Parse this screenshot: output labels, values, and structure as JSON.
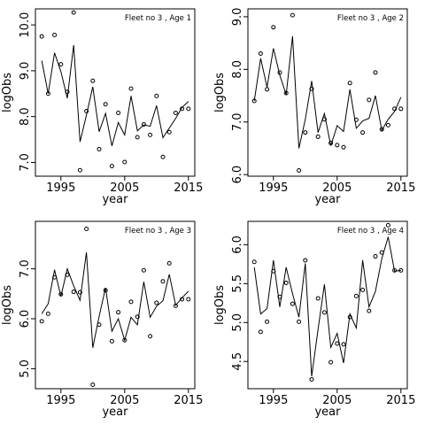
{
  "chart_data": [
    {
      "type": "scatter",
      "title": "Fleet no 3 , Age 1",
      "xlabel": "year",
      "ylabel": "logObs",
      "xlim": [
        1991,
        2016
      ],
      "ylim": [
        6.7,
        10.35
      ],
      "xticks": [
        1995,
        2005,
        2015
      ],
      "yticks": [
        7.0,
        8.0,
        9.0,
        10.0
      ],
      "ytick_labels": [
        "7.0",
        "8.0",
        "9.0",
        "10.0"
      ],
      "grid": false,
      "series": [
        {
          "kind": "points",
          "x": [
            1992,
            1993,
            1994,
            1995,
            1996,
            1997,
            1998,
            1999,
            2000,
            2001,
            2002,
            2003,
            2004,
            2005,
            2006,
            2007,
            2008,
            2009,
            2010,
            2011,
            2012,
            2013,
            2014,
            2015
          ],
          "y": [
            9.75,
            8.5,
            9.78,
            9.14,
            8.54,
            10.27,
            6.83,
            8.12,
            8.78,
            7.29,
            8.27,
            6.92,
            8.08,
            7.01,
            8.61,
            7.55,
            7.83,
            7.6,
            8.45,
            7.12,
            7.66,
            8.08,
            8.17,
            8.17
          ]
        },
        {
          "kind": "line",
          "x": [
            1992,
            1993,
            1994,
            1995,
            1996,
            1997,
            1998,
            1999,
            2000,
            2001,
            2002,
            2003,
            2004,
            2005,
            2006,
            2007,
            2008,
            2009,
            2010,
            2011,
            2012,
            2013,
            2014,
            2015
          ],
          "y": [
            9.22,
            8.5,
            9.39,
            8.98,
            8.4,
            9.56,
            7.45,
            8.03,
            8.65,
            7.67,
            8.07,
            7.36,
            7.87,
            7.6,
            8.45,
            7.69,
            7.82,
            7.79,
            8.24,
            7.54,
            7.75,
            7.96,
            8.2,
            8.33
          ]
        }
      ]
    },
    {
      "type": "scatter",
      "title": "Fleet no 3 , Age 2",
      "xlabel": "year",
      "ylabel": "logObs",
      "xlim": [
        1991,
        2016
      ],
      "ylim": [
        5.97,
        9.15
      ],
      "xticks": [
        1995,
        2005,
        2015
      ],
      "yticks": [
        6.0,
        7.0,
        8.0,
        9.0
      ],
      "ytick_labels": [
        "6.0",
        "7.0",
        "8.0",
        "9.0"
      ],
      "grid": false,
      "series": [
        {
          "kind": "points",
          "x": [
            1992,
            1993,
            1994,
            1995,
            1996,
            1997,
            1998,
            1999,
            2000,
            2001,
            2002,
            2003,
            2004,
            2005,
            2006,
            2007,
            2008,
            2009,
            2010,
            2011,
            2012,
            2013,
            2014,
            2015
          ],
          "y": [
            7.4,
            8.3,
            7.62,
            8.8,
            7.94,
            7.55,
            9.03,
            6.08,
            6.8,
            7.63,
            6.72,
            7.05,
            6.6,
            6.56,
            6.52,
            7.74,
            7.04,
            6.8,
            7.42,
            7.94,
            6.86,
            6.94,
            7.25,
            7.25
          ]
        },
        {
          "kind": "line",
          "x": [
            1992,
            1993,
            1994,
            1995,
            1996,
            1997,
            1998,
            1999,
            2000,
            2001,
            2002,
            2003,
            2004,
            2005,
            2006,
            2007,
            2008,
            2009,
            2010,
            2011,
            2012,
            2013,
            2014,
            2015
          ],
          "y": [
            7.4,
            8.21,
            7.66,
            8.4,
            7.89,
            7.52,
            8.63,
            6.5,
            7.05,
            7.78,
            6.8,
            7.16,
            6.55,
            6.93,
            6.82,
            7.62,
            6.88,
            7.02,
            7.07,
            7.5,
            6.84,
            7.05,
            7.2,
            7.47
          ]
        }
      ]
    },
    {
      "type": "scatter",
      "title": "Fleet no 3 , Age 3",
      "xlabel": "year",
      "ylabel": "logObs",
      "xlim": [
        1991,
        2016
      ],
      "ylim": [
        4.6,
        7.95
      ],
      "xticks": [
        1995,
        2005,
        2015
      ],
      "yticks": [
        5.0,
        6.0,
        7.0
      ],
      "ytick_labels": [
        "5.0",
        "6.0",
        "7.0"
      ],
      "grid": false,
      "series": [
        {
          "kind": "points",
          "x": [
            1992,
            1993,
            1994,
            1995,
            1996,
            1997,
            1998,
            1999,
            2000,
            2001,
            2002,
            2003,
            2004,
            2005,
            2006,
            2007,
            2008,
            2009,
            2010,
            2011,
            2012,
            2013,
            2014,
            2015
          ],
          "y": [
            5.95,
            6.1,
            6.83,
            6.49,
            6.88,
            6.54,
            6.53,
            7.8,
            4.68,
            5.88,
            6.57,
            5.55,
            6.13,
            5.57,
            6.34,
            6.04,
            6.97,
            5.65,
            6.32,
            6.75,
            7.11,
            6.26,
            6.39,
            6.39
          ]
        },
        {
          "kind": "line",
          "x": [
            1992,
            1993,
            1994,
            1995,
            1996,
            1997,
            1998,
            1999,
            2000,
            2001,
            2002,
            2003,
            2004,
            2005,
            2006,
            2007,
            2008,
            2009,
            2010,
            2011,
            2012,
            2013,
            2014,
            2015
          ],
          "y": [
            6.1,
            6.3,
            6.98,
            6.45,
            7.0,
            6.66,
            6.37,
            7.33,
            5.42,
            6.05,
            6.62,
            5.75,
            6.0,
            5.57,
            6.03,
            5.88,
            6.74,
            6.03,
            6.25,
            6.36,
            6.89,
            6.27,
            6.42,
            6.55
          ]
        }
      ]
    },
    {
      "type": "scatter",
      "title": "Fleet no 3 , Age 4",
      "xlabel": "year",
      "ylabel": "logObs",
      "xlim": [
        1991,
        2016
      ],
      "ylim": [
        4.15,
        6.3
      ],
      "xticks": [
        1995,
        2005,
        2015
      ],
      "yticks": [
        4.5,
        5.0,
        5.5,
        6.0
      ],
      "ytick_labels": [
        "4.5",
        "5.0",
        "5.5",
        "6.0"
      ],
      "grid": false,
      "series": [
        {
          "kind": "points",
          "x": [
            1992,
            1993,
            1994,
            1995,
            1996,
            1997,
            1998,
            1999,
            2000,
            2001,
            2002,
            2003,
            2004,
            2005,
            2006,
            2007,
            2008,
            2009,
            2010,
            2011,
            2012,
            2013,
            2014,
            2015
          ],
          "y": [
            5.78,
            4.88,
            5.01,
            5.66,
            5.33,
            5.51,
            5.24,
            5.01,
            5.8,
            4.27,
            5.31,
            5.13,
            4.49,
            4.73,
            4.72,
            5.07,
            5.34,
            5.42,
            5.15,
            5.85,
            5.9,
            6.25,
            5.67,
            5.67
          ]
        },
        {
          "kind": "line",
          "x": [
            1992,
            1993,
            1994,
            1995,
            1996,
            1997,
            1998,
            1999,
            2000,
            2001,
            2002,
            2003,
            2004,
            2005,
            2006,
            2007,
            2008,
            2009,
            2010,
            2011,
            2012,
            2013,
            2014,
            2015
          ],
          "y": [
            5.71,
            5.11,
            5.18,
            5.8,
            5.2,
            5.71,
            5.37,
            5.07,
            5.76,
            4.31,
            4.91,
            5.49,
            4.68,
            4.86,
            4.48,
            5.11,
            4.93,
            5.8,
            5.2,
            5.4,
            5.82,
            6.1,
            5.66,
            5.67
          ]
        }
      ]
    }
  ]
}
